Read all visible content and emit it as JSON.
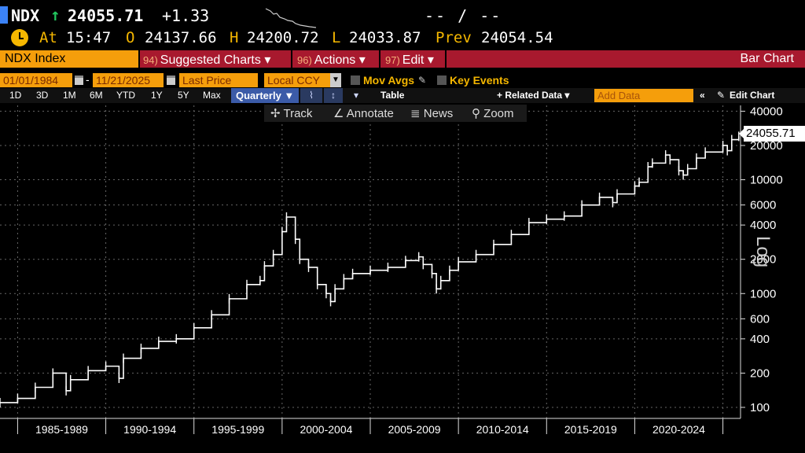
{
  "quote": {
    "ticker": "NDX",
    "arrow": "↑",
    "last": "24055.71",
    "change": "+1.33",
    "bid_ask": "-- / --",
    "at_label": "At",
    "time": "15:47",
    "open_label": "O",
    "open": "24137.66",
    "high_label": "H",
    "high": "24200.72",
    "low_label": "L",
    "low": "24033.87",
    "prev_label": "Prev",
    "prev": "24054.54"
  },
  "command_bar": {
    "security": "NDX Index",
    "items": [
      {
        "num": "94)",
        "label": "Suggested Charts ▾"
      },
      {
        "num": "96)",
        "label": "Actions ▾"
      },
      {
        "num": "97)",
        "label": "Edit ▾"
      }
    ],
    "title": "Bar Chart"
  },
  "options": {
    "start_date": "01/01/1984",
    "end_date": "11/21/2025",
    "field": "Last Price",
    "currency": "Local CCY",
    "mov_avgs": "Mov Avgs",
    "key_events": "Key Events"
  },
  "ranges": [
    "1D",
    "3D",
    "1M",
    "6M",
    "YTD",
    "1Y",
    "5Y",
    "Max"
  ],
  "periodicity": "Quarterly ▼",
  "table_label": "Table",
  "related_data": "+ Related Data ▾",
  "add_data_placeholder": "Add Data",
  "edit_chart": "Edit Chart",
  "chart_tools": {
    "track": "Track",
    "annotate": "Annotate",
    "news": "News",
    "zoom": "Zoom"
  },
  "colors": {
    "orange": "#f59e0b",
    "red_bar": "#a8192e",
    "up": "#22c55e",
    "accent_blue": "#3b5ba8"
  },
  "chart_data": {
    "type": "line",
    "title": "",
    "scale": "log",
    "scale_label": "Log",
    "last_value_label": "24055.71",
    "y_ticks": [
      100,
      200,
      400,
      600,
      1000,
      2000,
      4000,
      6000,
      10000,
      20000,
      40000
    ],
    "ylim": [
      80,
      45000
    ],
    "xlim": [
      1984,
      2026
    ],
    "x_tick_years": [
      1985,
      1990,
      1995,
      2000,
      2005,
      2010,
      2015,
      2020,
      2025
    ],
    "x_labels": [
      "1985-1989",
      "1990-1994",
      "1995-1999",
      "2000-2004",
      "2005-2009",
      "2010-2014",
      "2015-2019",
      "2020-2024"
    ],
    "series": [
      {
        "x": [
          1984.0,
          1985.0,
          1986.0,
          1987.0,
          1987.75,
          1988.0,
          1989.0,
          1990.0,
          1990.75,
          1991.0,
          1992.0,
          1993.0,
          1994.0,
          1995.0,
          1996.0,
          1997.0,
          1998.0,
          1998.75,
          1999.0,
          1999.5,
          2000.0,
          2000.25,
          2000.75,
          2001.0,
          2001.5,
          2002.0,
          2002.5,
          2002.75,
          2003.0,
          2003.5,
          2004.0,
          2005.0,
          2006.0,
          2007.0,
          2007.75,
          2008.0,
          2008.5,
          2008.75,
          2009.0,
          2009.5,
          2010.0,
          2011.0,
          2012.0,
          2013.0,
          2014.0,
          2015.0,
          2016.0,
          2017.0,
          2018.0,
          2018.75,
          2019.0,
          2020.0,
          2020.25,
          2020.75,
          2021.0,
          2021.75,
          2022.0,
          2022.5,
          2022.75,
          2023.0,
          2023.5,
          2024.0,
          2025.0,
          2025.25,
          2025.5,
          2025.9
        ],
        "values": [
          110,
          120,
          150,
          200,
          140,
          175,
          210,
          230,
          180,
          270,
          330,
          380,
          400,
          500,
          650,
          900,
          1200,
          1300,
          1750,
          2200,
          3500,
          4700,
          3000,
          2000,
          1700,
          1200,
          1000,
          850,
          1100,
          1350,
          1500,
          1600,
          1700,
          1950,
          2100,
          1800,
          1500,
          1100,
          1300,
          1600,
          1900,
          2200,
          2700,
          3300,
          4200,
          4500,
          4800,
          6000,
          7000,
          6300,
          7500,
          8800,
          9500,
          13000,
          14000,
          16500,
          15000,
          12000,
          11000,
          12500,
          15500,
          17500,
          20000,
          18000,
          22500,
          24055
        ]
      }
    ]
  }
}
